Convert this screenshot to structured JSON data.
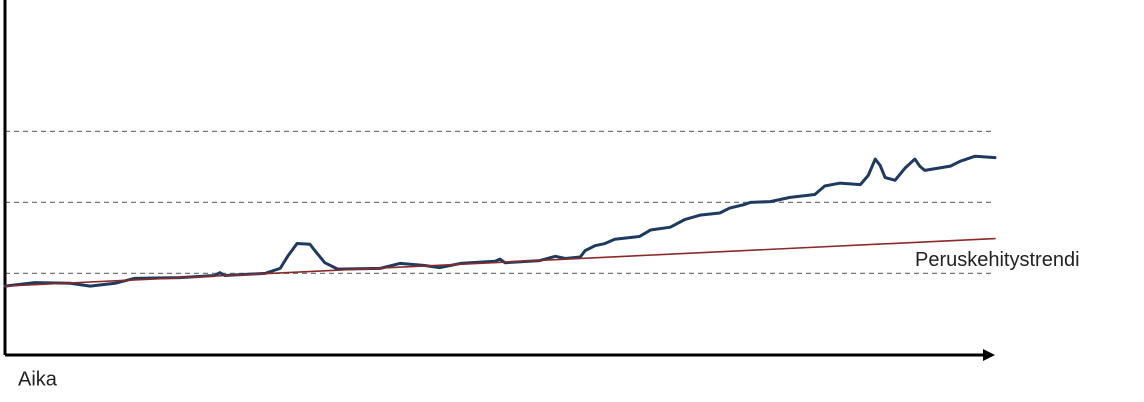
{
  "chart_data": {
    "type": "line",
    "x_label": "Aika",
    "xlim": [
      0,
      100
    ],
    "ylim": [
      -0.15,
      4.85
    ],
    "grid_levels": [
      1,
      2,
      3
    ],
    "series": [
      {
        "color": "#1f3a5f",
        "x": [
          0,
          3.0,
          6.6,
          8.6,
          11.1,
          13.1,
          17.7,
          21.2,
          21.7,
          22.2,
          26.3,
          27.8,
          28.6,
          29.5,
          30.8,
          31.3,
          32.3,
          33.6,
          37.9,
          39.9,
          42.4,
          43.9,
          46.0,
          49.5,
          50.0,
          50.5,
          54.0,
          55.6,
          56.6,
          58.1,
          58.6,
          59.6,
          60.6,
          61.6,
          64.1,
          65.2,
          67.2,
          68.7,
          70.2,
          72.2,
          73.2,
          74.7,
          75.3,
          77.3,
          79.3,
          81.8,
          82.8,
          84.3,
          86.4,
          87.2,
          87.9,
          88.4,
          88.9,
          89.9,
          90.9,
          91.9,
          92.4,
          92.9,
          95.5,
          96.5,
          98.0,
          100
        ],
        "values": [
          0.82,
          0.87,
          0.86,
          0.82,
          0.86,
          0.93,
          0.94,
          0.97,
          1.01,
          0.97,
          1.0,
          1.07,
          1.25,
          1.42,
          1.41,
          1.32,
          1.15,
          1.06,
          1.07,
          1.14,
          1.11,
          1.08,
          1.14,
          1.17,
          1.2,
          1.15,
          1.18,
          1.24,
          1.21,
          1.23,
          1.32,
          1.39,
          1.42,
          1.48,
          1.52,
          1.61,
          1.65,
          1.76,
          1.82,
          1.85,
          1.92,
          1.97,
          2.0,
          2.01,
          2.07,
          2.11,
          2.23,
          2.27,
          2.25,
          2.38,
          2.61,
          2.52,
          2.35,
          2.31,
          2.48,
          2.61,
          2.51,
          2.45,
          2.51,
          2.58,
          2.65,
          2.63
        ]
      },
      {
        "name": "Peruskehitystrendi",
        "color": "#8b2a2a",
        "x": [
          0,
          100
        ],
        "values": [
          0.82,
          1.49
        ]
      }
    ]
  }
}
